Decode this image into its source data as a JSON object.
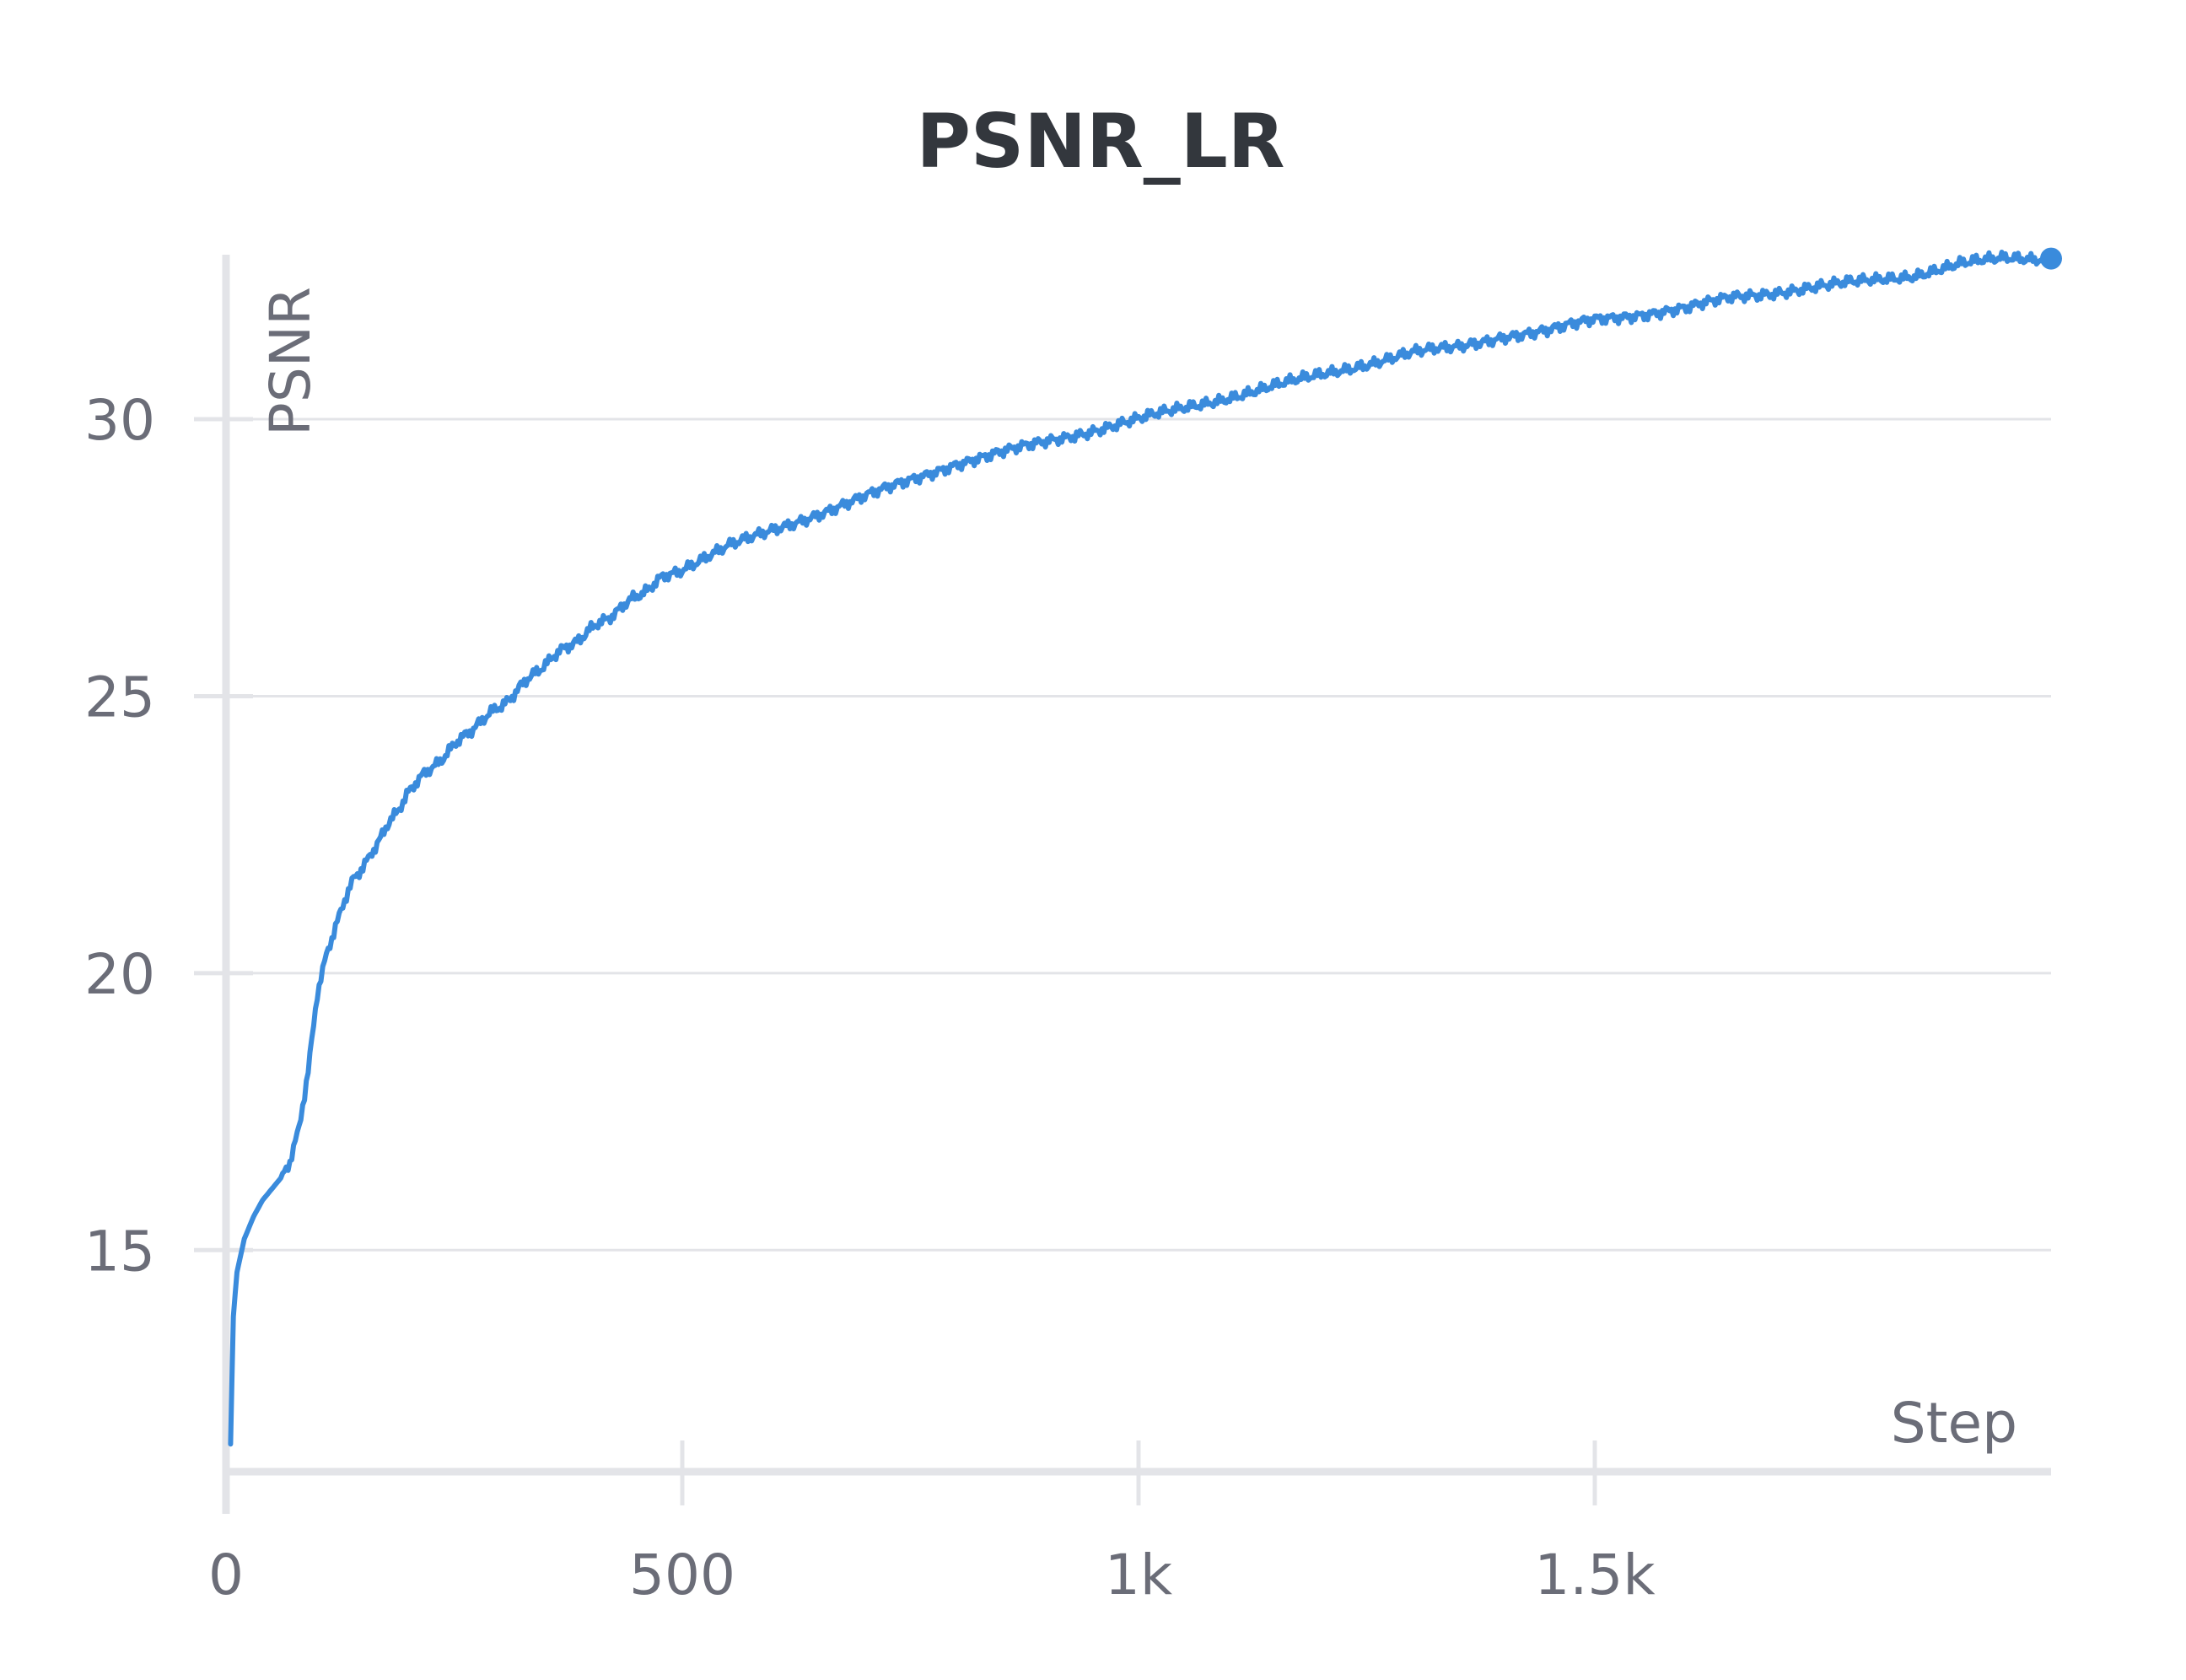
{
  "chart_data": {
    "type": "line",
    "title": "PSNR_LR",
    "xlabel": "Step",
    "ylabel": "PSNR",
    "xlim": [
      0,
      2000
    ],
    "ylim": [
      11,
      33
    ],
    "x_ticks": [
      0,
      500,
      1000,
      1500
    ],
    "x_tick_labels": [
      "0",
      "500",
      "1k",
      "1.5k"
    ],
    "y_ticks": [
      15,
      20,
      25,
      30
    ],
    "y_tick_labels": [
      "15",
      "20",
      "25",
      "30"
    ],
    "grid": true,
    "legend": "none",
    "line_color": "#3a8bdc",
    "series": [
      {
        "x": [
          5,
          8,
          12,
          20,
          30,
          40,
          50,
          60,
          70,
          80,
          90,
          100,
          110,
          120,
          130,
          140,
          150,
          160,
          175,
          190,
          200,
          225,
          250,
          275,
          300,
          325,
          350,
          375,
          400,
          425,
          450,
          475,
          500,
          550,
          600,
          650,
          700,
          750,
          800,
          850,
          900,
          950,
          1000,
          1050,
          1100,
          1150,
          1200,
          1250,
          1300,
          1350,
          1400,
          1450,
          1500,
          1550,
          1600,
          1650,
          1700,
          1750,
          1800,
          1850,
          1900,
          1950,
          2000
        ],
        "y": [
          11.5,
          13.8,
          14.6,
          15.2,
          15.6,
          15.9,
          16.1,
          16.3,
          16.6,
          17.2,
          18.2,
          19.6,
          20.3,
          20.8,
          21.3,
          21.7,
          21.9,
          22.2,
          22.6,
          23.0,
          23.3,
          23.7,
          24.1,
          24.5,
          24.8,
          25.2,
          25.6,
          25.9,
          26.2,
          26.5,
          26.8,
          27.1,
          27.3,
          27.7,
          28.0,
          28.3,
          28.6,
          28.9,
          29.2,
          29.4,
          29.6,
          29.8,
          30.0,
          30.2,
          30.4,
          30.6,
          30.8,
          31.0,
          31.2,
          31.3,
          31.5,
          31.6,
          31.8,
          31.9,
          32.0,
          32.2,
          32.3,
          32.4,
          32.5,
          32.6,
          32.8,
          32.9,
          32.9
        ]
      }
    ]
  }
}
